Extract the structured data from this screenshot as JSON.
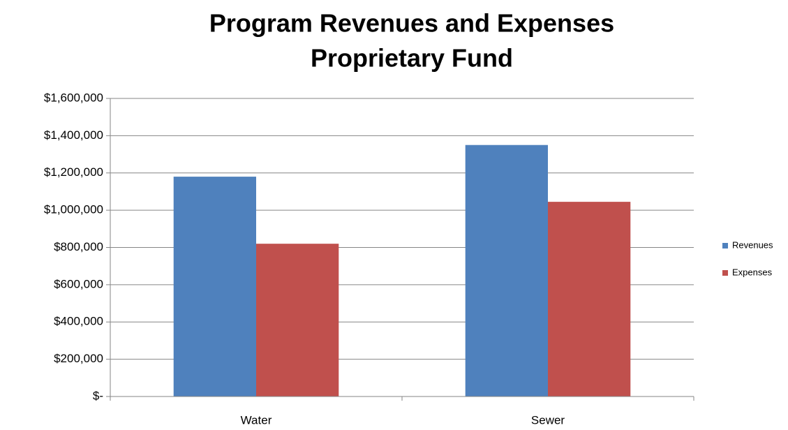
{
  "chart_data": {
    "type": "bar",
    "title": [
      "Program Revenues and Expenses",
      "Proprietary Fund"
    ],
    "categories": [
      "Water",
      "Sewer"
    ],
    "series": [
      {
        "name": "Revenues",
        "color": "#4f81bd",
        "values": [
          1180000,
          1350000
        ]
      },
      {
        "name": "Expenses",
        "color": "#c0504d",
        "values": [
          820000,
          1045000
        ]
      }
    ],
    "ylim": [
      0,
      1600000
    ],
    "yticks": [
      {
        "value": 0,
        "label": "$-"
      },
      {
        "value": 200000,
        "label": "$200,000"
      },
      {
        "value": 400000,
        "label": "$400,000"
      },
      {
        "value": 600000,
        "label": "$600,000"
      },
      {
        "value": 800000,
        "label": "$800,000"
      },
      {
        "value": 1000000,
        "label": "$1,000,000"
      },
      {
        "value": 1200000,
        "label": "$1,200,000"
      },
      {
        "value": 1400000,
        "label": "$1,400,000"
      },
      {
        "value": 1600000,
        "label": "$1,600,000"
      }
    ],
    "grid": true,
    "legend": "right"
  }
}
